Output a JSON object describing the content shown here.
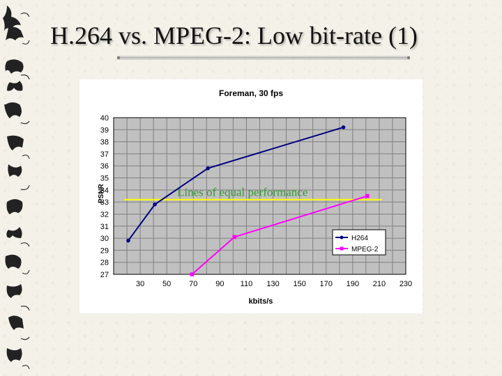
{
  "slide": {
    "title": "H.264 vs. MPEG-2: Low bit-rate (1)",
    "decor_icon": "animal-glyph-border-icon"
  },
  "colors": {
    "plot_bg": "#c0c0c0",
    "grid": "#808080",
    "h264": "#000080",
    "mpeg2": "#ff00ff",
    "equal_line": "#ffff00",
    "annotation": "#339933"
  },
  "chart_data": {
    "type": "line",
    "title": "Foreman, 30 fps",
    "xlabel": "kbits/s",
    "ylabel": "PSNR",
    "xlim": [
      10,
      230
    ],
    "ylim": [
      27,
      40
    ],
    "x_ticks": [
      30,
      50,
      70,
      90,
      110,
      130,
      150,
      170,
      190,
      210,
      230
    ],
    "x_tick_labels": [
      "30",
      "50",
      "70",
      "90",
      "110",
      "130",
      "150",
      "170",
      "190",
      "210",
      "230"
    ],
    "y_ticks": [
      27,
      28,
      29,
      30,
      31,
      32,
      33,
      34,
      35,
      36,
      37,
      38,
      39,
      40
    ],
    "y_tick_labels": [
      "27",
      "28",
      "29",
      "30",
      "31",
      "32",
      "33",
      "34",
      "35",
      "36",
      "37",
      "38",
      "39",
      "40"
    ],
    "grid": true,
    "legend_position": "bottom-right",
    "series": [
      {
        "name": "H264",
        "marker": "circle",
        "x": [
          21,
          41,
          81,
          183
        ],
        "y": [
          29.8,
          32.8,
          35.8,
          39.2
        ]
      },
      {
        "name": "MPEG-2",
        "marker": "square",
        "x": [
          69,
          101,
          201
        ],
        "y": [
          27.0,
          30.1,
          33.5
        ]
      }
    ],
    "annotations": [
      {
        "text": "Lines of equal performance",
        "y": 33.2
      }
    ]
  }
}
